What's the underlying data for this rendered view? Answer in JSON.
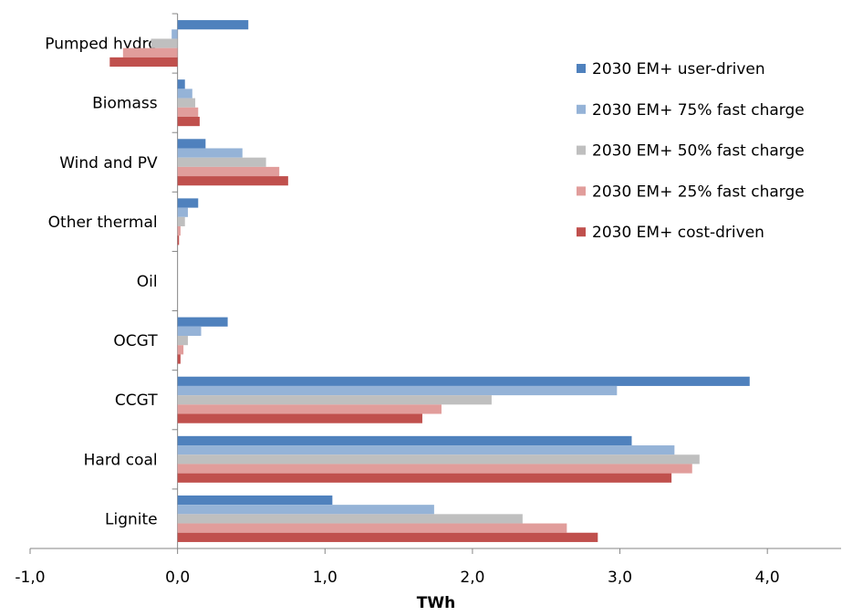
{
  "chart_data": {
    "type": "hbar",
    "x_label": "TWh",
    "categories": [
      "Pumped hydro",
      "Biomass",
      "Wind and PV",
      "Other thermal",
      "Oil",
      "OCGT",
      "CCGT",
      "Hard coal",
      "Lignite"
    ],
    "series": [
      {
        "name": "2030 EM+ user-driven",
        "color": "#4f81bd",
        "values": [
          0.48,
          0.05,
          0.19,
          0.14,
          0,
          0.34,
          3.88,
          3.08,
          1.05
        ]
      },
      {
        "name": "2030 EM+ 75% fast charge",
        "color": "#95b3d7",
        "values": [
          -0.04,
          0.1,
          0.44,
          0.07,
          0,
          0.16,
          2.98,
          3.37,
          1.74
        ]
      },
      {
        "name": "2030 EM+ 50% fast charge",
        "color": "#bfbfbf",
        "values": [
          -0.18,
          0.12,
          0.6,
          0.05,
          0,
          0.07,
          2.13,
          3.54,
          2.34
        ]
      },
      {
        "name": "2030 EM+ 25% fast charge",
        "color": "#e19d9b",
        "values": [
          -0.37,
          0.14,
          0.69,
          0.02,
          0,
          0.04,
          1.79,
          3.49,
          2.64
        ]
      },
      {
        "name": "2030 EM+ cost-driven",
        "color": "#c0504d",
        "values": [
          -0.46,
          0.15,
          0.75,
          0.01,
          0,
          0.02,
          1.66,
          3.35,
          2.85
        ]
      }
    ],
    "xlim": [
      -1,
      4.5
    ],
    "xticks": [
      {
        "value": -1,
        "label": "-1,0"
      },
      {
        "value": 0,
        "label": "0,0"
      },
      {
        "value": 1,
        "label": "1,0"
      },
      {
        "value": 2,
        "label": "2,0"
      },
      {
        "value": 3,
        "label": "3,0"
      },
      {
        "value": 4,
        "label": "4,0"
      }
    ],
    "grid": false,
    "legend": "upper right"
  }
}
